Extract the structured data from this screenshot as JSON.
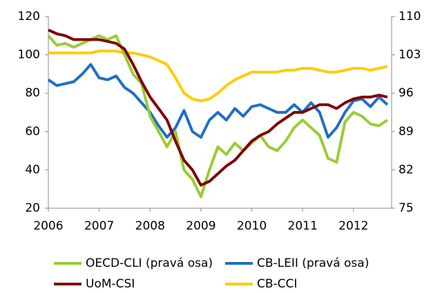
{
  "chart_data": {
    "type": "line",
    "x": [
      2006,
      2006.167,
      2006.333,
      2006.5,
      2006.667,
      2006.833,
      2007,
      2007.167,
      2007.333,
      2007.5,
      2007.667,
      2007.833,
      2008,
      2008.167,
      2008.333,
      2008.5,
      2008.667,
      2008.833,
      2009,
      2009.167,
      2009.333,
      2009.5,
      2009.667,
      2009.833,
      2010,
      2010.167,
      2010.333,
      2010.5,
      2010.667,
      2010.833,
      2011,
      2011.167,
      2011.333,
      2011.5,
      2011.667,
      2011.833,
      2012,
      2012.167,
      2012.333,
      2012.5,
      2012.667
    ],
    "xlim": [
      2006,
      2012.75
    ],
    "xticks": [
      2006,
      2007,
      2008,
      2009,
      2010,
      2011,
      2012
    ],
    "ylim": [
      20,
      120
    ],
    "yticks": [
      20,
      40,
      60,
      80,
      100,
      120
    ],
    "y2lim": [
      75,
      110
    ],
    "y2ticks": [
      75,
      82,
      89,
      96,
      103,
      110
    ],
    "series": [
      {
        "name": "OECD-CLI (pravá osa)",
        "color": "#99cc33",
        "axis": "y2",
        "values": [
          106.5,
          104.75,
          105.1,
          104.4,
          105.1,
          105.8,
          106.5,
          105.8,
          106.5,
          103,
          99.5,
          97.75,
          91.8,
          89,
          86.2,
          89,
          82,
          80.25,
          77.1,
          82,
          86.2,
          84.8,
          86.9,
          85.5,
          86.9,
          88.3,
          86.2,
          85.5,
          87.25,
          89.7,
          91.1,
          89.7,
          88.3,
          84.1,
          83.4,
          90.75,
          92.5,
          91.8,
          90.4,
          90.05,
          91.1
        ]
      },
      {
        "name": "CB-LEII (pravá osa)",
        "color": "#1f6fc5",
        "axis": "y2",
        "values": [
          98.45,
          97.4,
          97.75,
          98.1,
          99.5,
          101.25,
          98.8,
          98.45,
          99.15,
          97.05,
          96,
          94.25,
          92.5,
          90.05,
          87.95,
          89.7,
          92.85,
          89,
          87.95,
          91.1,
          92.5,
          91.1,
          93.2,
          91.8,
          93.55,
          93.9,
          93.2,
          92.5,
          92.5,
          93.9,
          92.5,
          94.25,
          92.5,
          87.95,
          89.7,
          92.5,
          94.6,
          94.95,
          93.55,
          95.3,
          93.9
        ]
      },
      {
        "name": "UoM-CSI",
        "color": "#800000",
        "values": [
          113,
          111,
          110,
          108,
          108,
          108,
          108,
          107,
          106,
          103,
          95,
          86,
          78,
          72,
          66,
          55,
          45,
          40,
          32,
          34,
          38,
          42,
          45,
          50,
          55,
          58,
          60,
          64,
          67,
          70,
          70,
          72,
          74,
          74,
          72,
          75,
          77,
          78,
          78,
          79,
          78
        ]
      },
      {
        "name": "CB-CCI",
        "color": "#ffcc00",
        "values": [
          101,
          101,
          101,
          101,
          101,
          101,
          102,
          102,
          102,
          101,
          101,
          100,
          99,
          97,
          95,
          88,
          80,
          77,
          76,
          77,
          80,
          84,
          87,
          89,
          91,
          91,
          91,
          91,
          92,
          92,
          93,
          93,
          92,
          91,
          91,
          92,
          93,
          93,
          92,
          93,
          94
        ]
      }
    ]
  }
}
